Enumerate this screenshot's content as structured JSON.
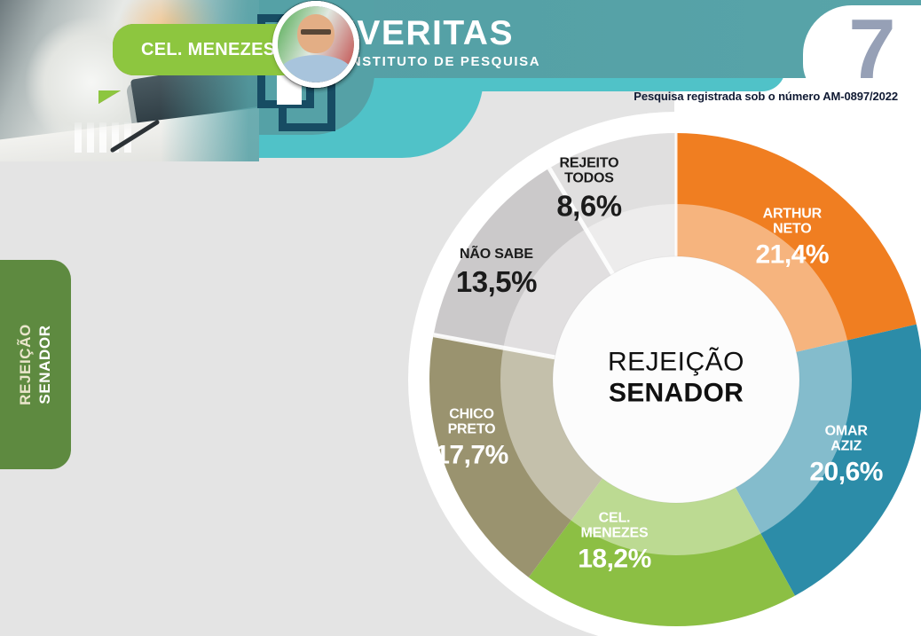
{
  "header": {
    "logo": {
      "title": "IVERITAS",
      "subtitle": "INSTITUTO DE PESQUISA"
    },
    "page_number": "7",
    "registration": "Pesquisa registrada sob o número AM-0897/2022"
  },
  "side_tab": {
    "line1": "REJEIÇÃO",
    "line2": "SENADOR"
  },
  "candidates": [
    {
      "name": "OMAR AZIZ",
      "color": "#2B8DAD"
    },
    {
      "name": "ARTHUR NETO",
      "color": "#F47E20"
    },
    {
      "name": "CHICO PRETO",
      "color": "#A8A083"
    },
    {
      "name": "CEL. MENEZES",
      "color": "#8DC63F"
    }
  ],
  "chart_data": {
    "type": "pie",
    "subtype": "donut",
    "title": "REJEIÇÃO SENADOR",
    "center": [
      "REJEIÇÃO",
      "SENADOR"
    ],
    "start_angle_deg": 0,
    "direction": "clockwise",
    "inner_radius_ratio": 0.5,
    "legend_position": "none",
    "slices": [
      {
        "label": "ARTHUR NETO",
        "label_lines": [
          "ARTHUR",
          "NETO"
        ],
        "value": 21.4,
        "value_text": "21,4%",
        "color": "#F07E21",
        "text_color": "#FFFFFF"
      },
      {
        "label": "OMAR AZIZ",
        "label_lines": [
          "OMAR",
          "AZIZ"
        ],
        "value": 20.6,
        "value_text": "20,6%",
        "color": "#2C8CA8",
        "text_color": "#FFFFFF"
      },
      {
        "label": "CEL. MENEZES",
        "label_lines": [
          "CEL.",
          "MENEZES"
        ],
        "value": 18.2,
        "value_text": "18,2%",
        "color": "#8CBF44",
        "text_color": "#FFFFFF"
      },
      {
        "label": "CHICO PRETO",
        "label_lines": [
          "CHICO",
          "PRETO"
        ],
        "value": 17.7,
        "value_text": "17,7%",
        "color": "#9A936F",
        "text_color": "#FFFFFF"
      },
      {
        "label": "NÃO SABE",
        "label_lines": [
          "NÃO SABE"
        ],
        "value": 13.5,
        "value_text": "13,5%",
        "color": "#CBC9CA",
        "text_color": "#1B1B1B"
      },
      {
        "label": "REJEITO TODOS",
        "label_lines": [
          "REJEITO",
          "TODOS"
        ],
        "value": 8.6,
        "value_text": "8,6%",
        "color": "#E0DFDF",
        "text_color": "#1B1B1B"
      }
    ]
  },
  "colors": {
    "banner_teal": "#55A1A6",
    "banner_cyan": "#50C2C8",
    "body_gray": "#E4E4E4",
    "tab_green": "#5E8A40",
    "logo_dark": "#174C63",
    "page_number_slate": "#96A0B6",
    "registration_text": "#101A33"
  }
}
